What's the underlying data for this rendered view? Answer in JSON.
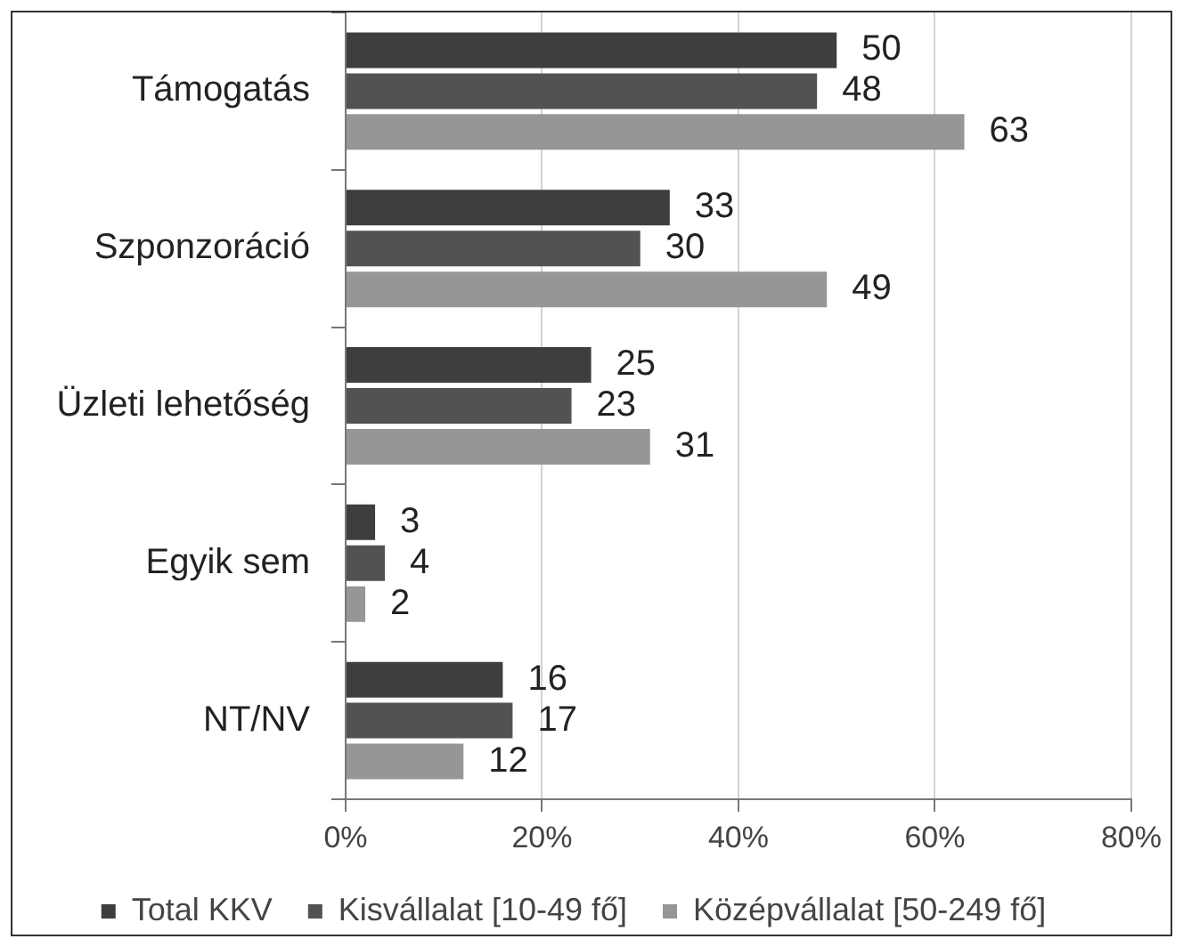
{
  "chart_data": {
    "type": "bar",
    "orientation": "horizontal",
    "categories": [
      "Támogatás",
      "Szponzoráció",
      "Üzleti lehetőség",
      "Egyik sem",
      "NT/NV"
    ],
    "series": [
      {
        "name": "Total KKV",
        "color": "#3e3e3e",
        "values": [
          50,
          33,
          25,
          3,
          16
        ]
      },
      {
        "name": "Kisvállalat [10-49 fő]",
        "color": "#525252",
        "values": [
          48,
          30,
          23,
          4,
          17
        ]
      },
      {
        "name": "Középvállalat [50-249 fő]",
        "color": "#969696",
        "values": [
          63,
          49,
          31,
          2,
          12
        ]
      }
    ],
    "xlim": [
      0,
      80
    ],
    "xticks": [
      {
        "value": 0,
        "label": "0%"
      },
      {
        "value": 20,
        "label": "20%"
      },
      {
        "value": 40,
        "label": "40%"
      },
      {
        "value": 60,
        "label": "60%"
      },
      {
        "value": 80,
        "label": "80%"
      }
    ],
    "grid": "x",
    "legend": "bottom",
    "data_labels": true
  }
}
